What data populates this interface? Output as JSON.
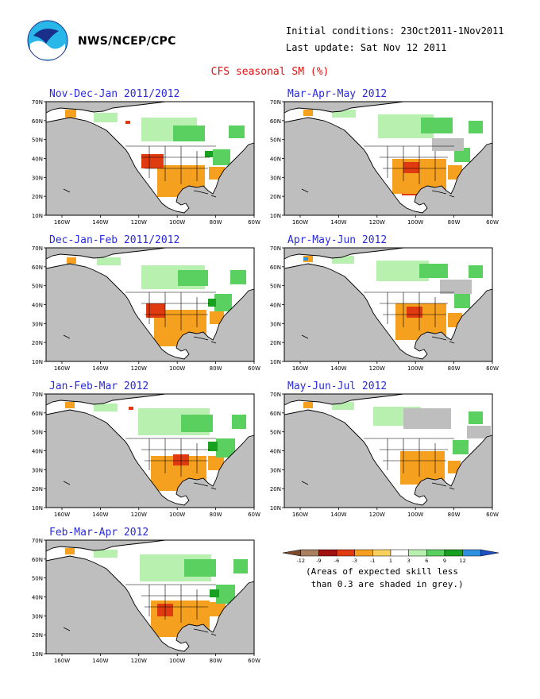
{
  "header": {
    "agency": "NWS/NCEP/CPC",
    "initial_conditions": "Initial conditions: 23Oct2011-1Nov2011",
    "last_update": "Last update: Sat Nov 12 2011",
    "title": "CFS seasonal SM (%)"
  },
  "panels": [
    {
      "title": "Nov-Dec-Jan 2011/2012"
    },
    {
      "title": "Dec-Jan-Feb 2011/2012"
    },
    {
      "title": "Jan-Feb-Mar 2012"
    },
    {
      "title": "Feb-Mar-Apr 2012"
    },
    {
      "title": "Mar-Apr-May 2012"
    },
    {
      "title": "Apr-May-Jun 2012"
    },
    {
      "title": "May-Jun-Jul 2012"
    }
  ],
  "map_axes": {
    "lat_labels": [
      "70N",
      "60N",
      "50N",
      "40N",
      "30N",
      "20N",
      "10N"
    ],
    "lon_labels": [
      "160W",
      "140W",
      "120W",
      "100W",
      "80W",
      "60W"
    ]
  },
  "legend": {
    "tick_labels": [
      "-12",
      "-9",
      "-6",
      "-3",
      "-1",
      "1",
      "3",
      "6",
      "9",
      "12"
    ],
    "colors": [
      "#7a4a2a",
      "#a88060",
      "#a01010",
      "#e03a10",
      "#f6a020",
      "#f8d060",
      "#ffffff",
      "#b8f0b0",
      "#5ad060",
      "#18a020",
      "#3090e0",
      "#2050c0"
    ],
    "note": "(Areas of expected skill less\n than 0.3 are shaded in grey.)"
  },
  "colors": {
    "ocean": "#bebebe",
    "land": "#ffffff",
    "title_red": "#e01010",
    "panel_title_blue": "#2a2ae0"
  }
}
